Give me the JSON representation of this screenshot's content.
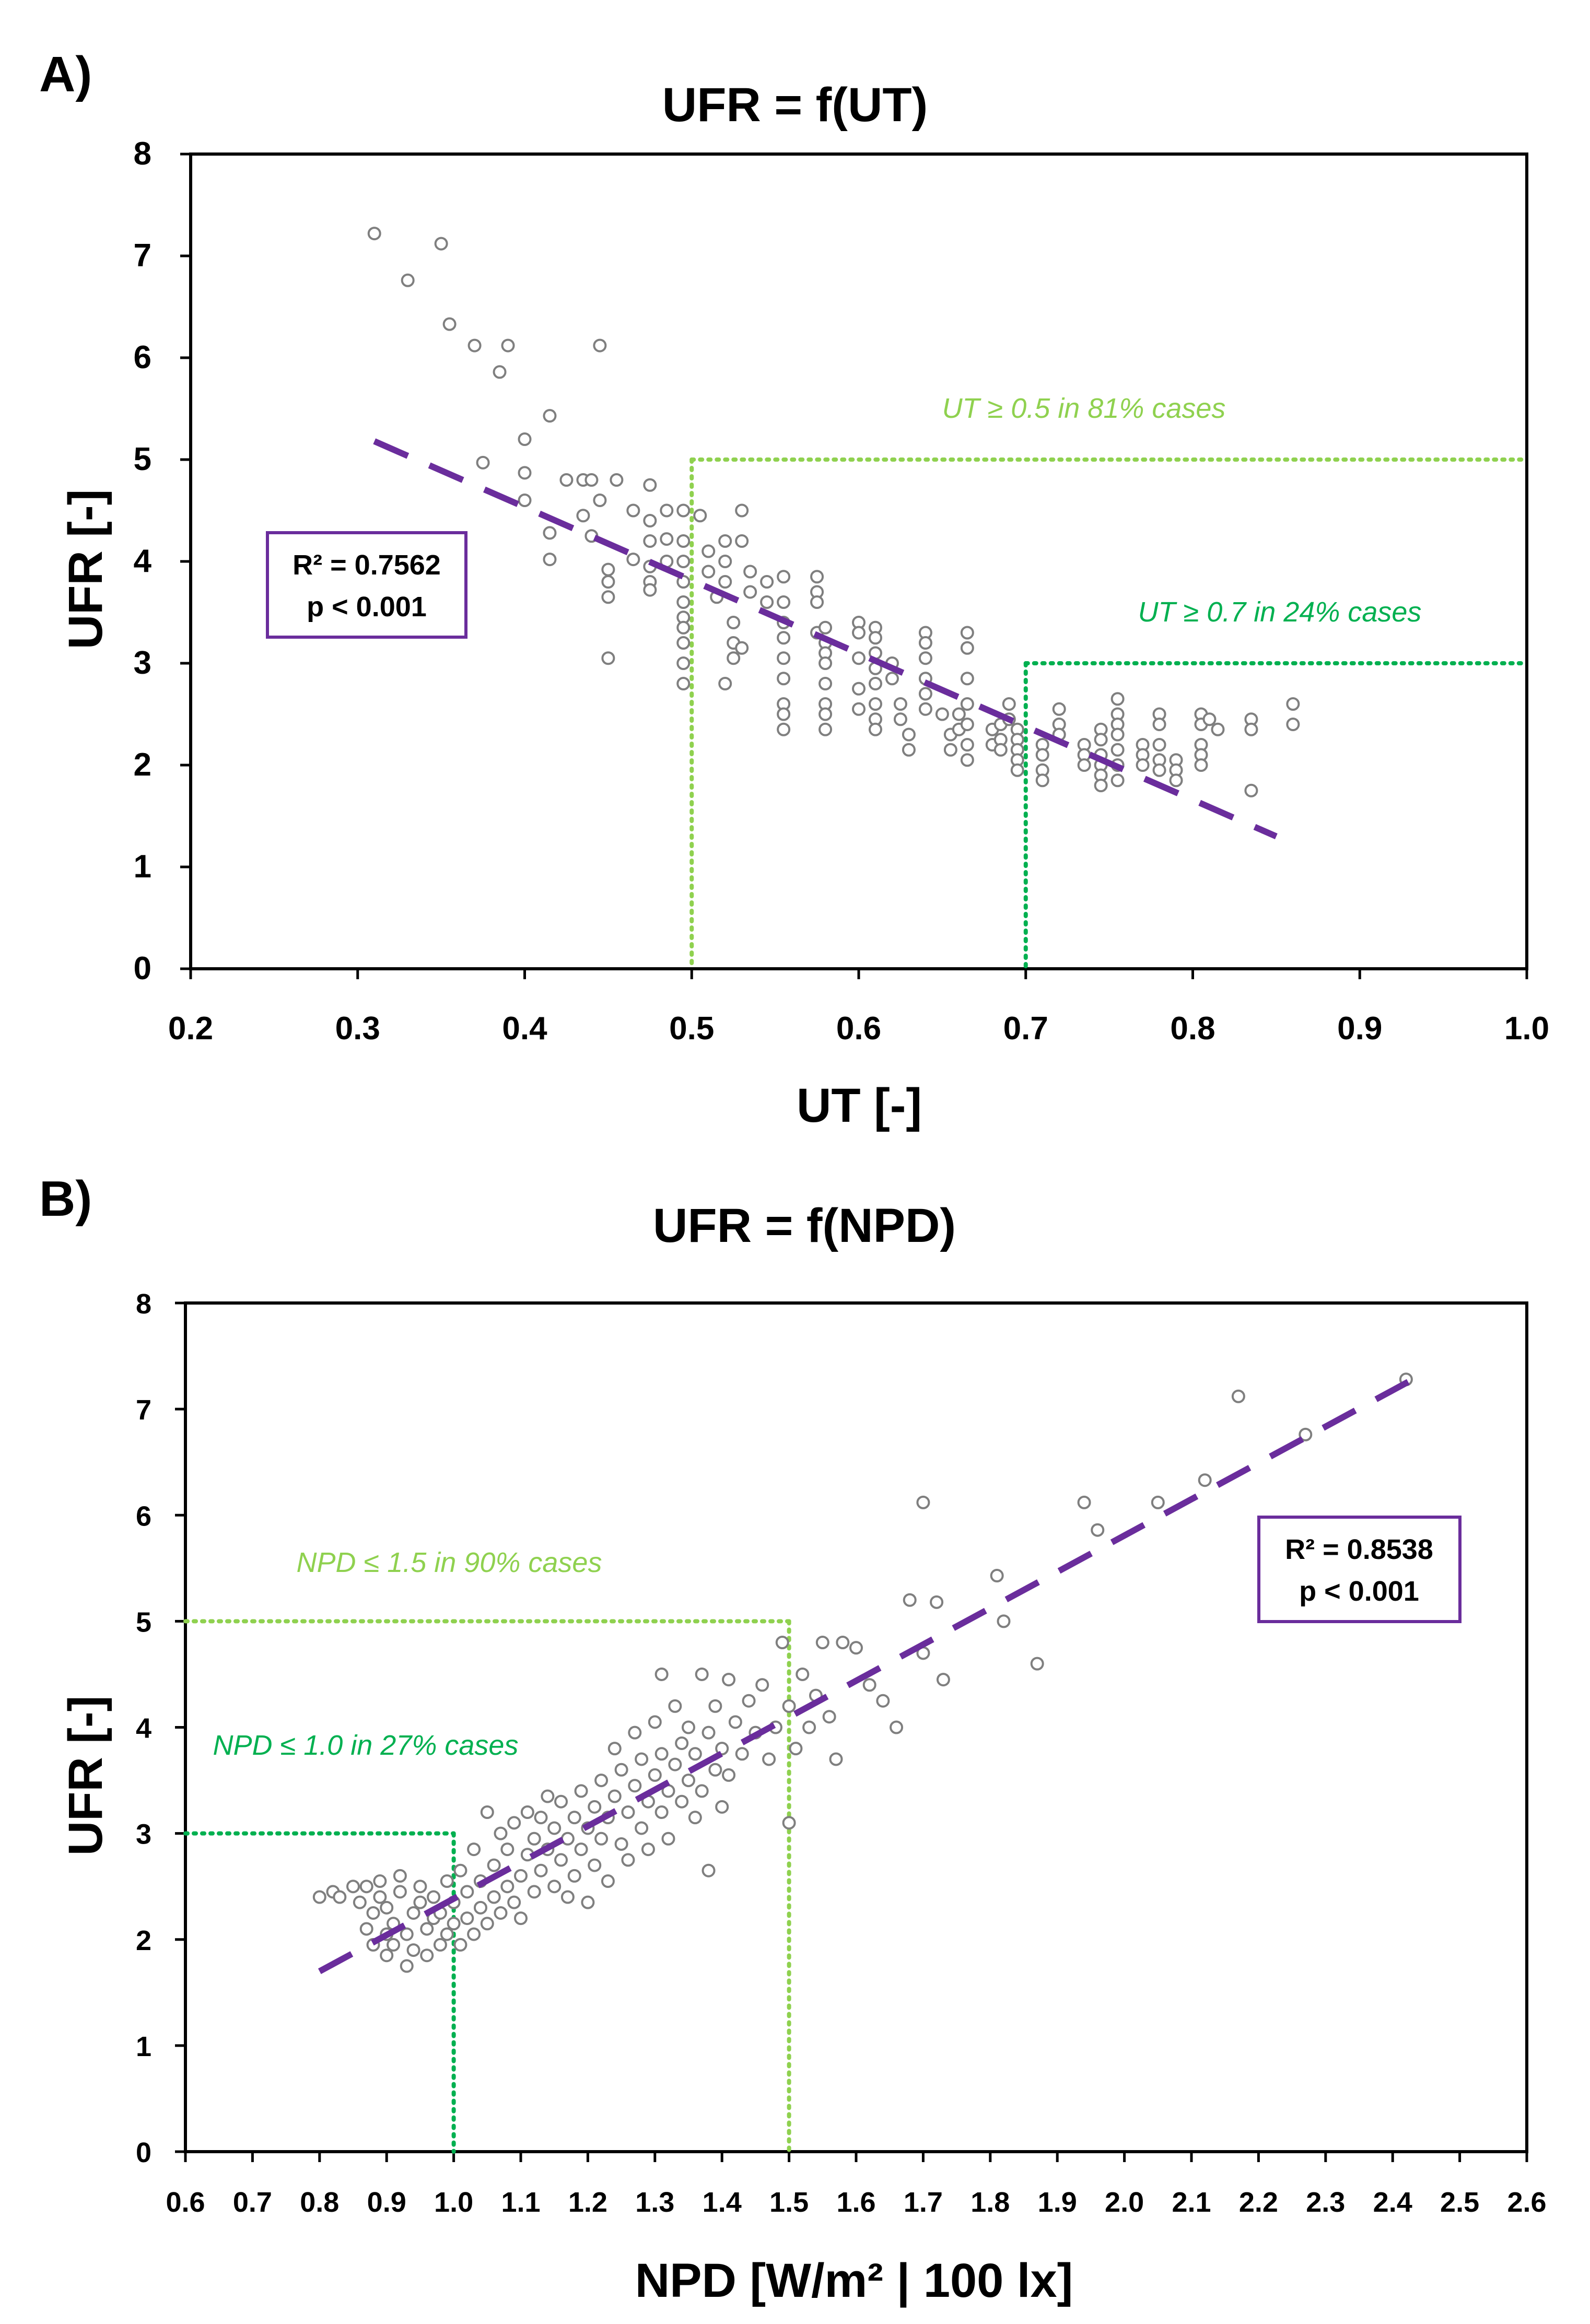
{
  "colors": {
    "accent": "#6a2d9c",
    "light_green": "#8fd14f",
    "dark_green": "#00b050",
    "marker": "#7f7f7f"
  },
  "chart_data": [
    {
      "panel_label": "A)",
      "type": "scatter",
      "title": "UFR = f(UT)",
      "xlabel": "UT [-]",
      "ylabel": "UFR [-]",
      "xlim": [
        0.2,
        1.0
      ],
      "ylim": [
        0,
        8
      ],
      "xticks": [
        "0.2",
        "0.3",
        "0.4",
        "0.5",
        "0.6",
        "0.7",
        "0.8",
        "0.9",
        "1.0"
      ],
      "yticks": [
        "0",
        "1",
        "2",
        "3",
        "4",
        "5",
        "6",
        "7",
        "8"
      ],
      "grid": false,
      "stats": {
        "r2": "R² = 0.7562",
        "p": "p < 0.001"
      },
      "trendline": {
        "x": [
          0.31,
          0.85
        ],
        "y": [
          5.18,
          1.3
        ]
      },
      "thresholds": [
        {
          "label": "UT ≥ 0.5 in 81% cases",
          "x": 0.5,
          "y": 5,
          "x_end": 1.0,
          "color": "light"
        },
        {
          "label": "UT ≥ 0.7 in 24% cases",
          "x": 0.7,
          "y": 3,
          "x_end": 1.0,
          "color": "dark"
        }
      ],
      "points": [
        [
          0.31,
          7.22
        ],
        [
          0.33,
          6.76
        ],
        [
          0.35,
          7.12
        ],
        [
          0.355,
          6.33
        ],
        [
          0.37,
          6.12
        ],
        [
          0.385,
          5.86
        ],
        [
          0.39,
          6.12
        ],
        [
          0.375,
          4.97
        ],
        [
          0.4,
          5.2
        ],
        [
          0.4,
          4.87
        ],
        [
          0.4,
          4.6
        ],
        [
          0.415,
          5.43
        ],
        [
          0.415,
          4.28
        ],
        [
          0.415,
          4.02
        ],
        [
          0.425,
          4.8
        ],
        [
          0.435,
          4.8
        ],
        [
          0.44,
          4.8
        ],
        [
          0.445,
          6.12
        ],
        [
          0.445,
          4.6
        ],
        [
          0.435,
          4.45
        ],
        [
          0.44,
          4.25
        ],
        [
          0.45,
          3.92
        ],
        [
          0.45,
          3.8
        ],
        [
          0.45,
          3.65
        ],
        [
          0.45,
          3.05
        ],
        [
          0.455,
          4.8
        ],
        [
          0.465,
          4.5
        ],
        [
          0.465,
          4.02
        ],
        [
          0.475,
          4.75
        ],
        [
          0.475,
          4.4
        ],
        [
          0.475,
          4.2
        ],
        [
          0.475,
          3.95
        ],
        [
          0.475,
          3.8
        ],
        [
          0.475,
          3.72
        ],
        [
          0.485,
          4.5
        ],
        [
          0.485,
          4.22
        ],
        [
          0.485,
          4.0
        ],
        [
          0.495,
          4.5
        ],
        [
          0.495,
          4.2
        ],
        [
          0.495,
          4.0
        ],
        [
          0.495,
          3.8
        ],
        [
          0.495,
          3.6
        ],
        [
          0.495,
          3.45
        ],
        [
          0.495,
          3.35
        ],
        [
          0.495,
          3.2
        ],
        [
          0.495,
          3.0
        ],
        [
          0.495,
          2.8
        ],
        [
          0.505,
          4.45
        ],
        [
          0.51,
          4.1
        ],
        [
          0.51,
          3.9
        ],
        [
          0.515,
          3.65
        ],
        [
          0.52,
          4.2
        ],
        [
          0.52,
          4.0
        ],
        [
          0.52,
          3.8
        ],
        [
          0.525,
          3.4
        ],
        [
          0.525,
          3.2
        ],
        [
          0.525,
          3.05
        ],
        [
          0.52,
          2.8
        ],
        [
          0.53,
          4.5
        ],
        [
          0.53,
          4.2
        ],
        [
          0.535,
          3.9
        ],
        [
          0.535,
          3.7
        ],
        [
          0.53,
          3.15
        ],
        [
          0.545,
          3.8
        ],
        [
          0.545,
          3.6
        ],
        [
          0.555,
          3.85
        ],
        [
          0.555,
          3.6
        ],
        [
          0.555,
          3.4
        ],
        [
          0.555,
          3.25
        ],
        [
          0.555,
          3.05
        ],
        [
          0.555,
          2.85
        ],
        [
          0.555,
          2.6
        ],
        [
          0.555,
          2.5
        ],
        [
          0.555,
          2.35
        ],
        [
          0.575,
          3.85
        ],
        [
          0.575,
          3.7
        ],
        [
          0.575,
          3.6
        ],
        [
          0.575,
          3.3
        ],
        [
          0.58,
          3.35
        ],
        [
          0.58,
          3.2
        ],
        [
          0.58,
          3.1
        ],
        [
          0.58,
          3.0
        ],
        [
          0.58,
          2.8
        ],
        [
          0.58,
          2.6
        ],
        [
          0.58,
          2.5
        ],
        [
          0.58,
          2.35
        ],
        [
          0.6,
          3.4
        ],
        [
          0.6,
          3.3
        ],
        [
          0.6,
          3.05
        ],
        [
          0.6,
          2.75
        ],
        [
          0.6,
          2.55
        ],
        [
          0.61,
          3.35
        ],
        [
          0.61,
          3.25
        ],
        [
          0.61,
          3.1
        ],
        [
          0.61,
          2.95
        ],
        [
          0.61,
          2.8
        ],
        [
          0.61,
          2.6
        ],
        [
          0.61,
          2.45
        ],
        [
          0.61,
          2.35
        ],
        [
          0.62,
          3.0
        ],
        [
          0.62,
          2.85
        ],
        [
          0.625,
          2.6
        ],
        [
          0.625,
          2.45
        ],
        [
          0.63,
          2.3
        ],
        [
          0.63,
          2.15
        ],
        [
          0.64,
          3.3
        ],
        [
          0.64,
          3.2
        ],
        [
          0.64,
          3.05
        ],
        [
          0.64,
          2.85
        ],
        [
          0.64,
          2.7
        ],
        [
          0.64,
          2.55
        ],
        [
          0.65,
          2.5
        ],
        [
          0.655,
          2.3
        ],
        [
          0.655,
          2.15
        ],
        [
          0.66,
          2.5
        ],
        [
          0.66,
          2.35
        ],
        [
          0.665,
          3.3
        ],
        [
          0.665,
          3.15
        ],
        [
          0.665,
          2.85
        ],
        [
          0.665,
          2.6
        ],
        [
          0.665,
          2.4
        ],
        [
          0.665,
          2.2
        ],
        [
          0.665,
          2.05
        ],
        [
          0.68,
          2.35
        ],
        [
          0.68,
          2.2
        ],
        [
          0.685,
          2.4
        ],
        [
          0.685,
          2.25
        ],
        [
          0.685,
          2.15
        ],
        [
          0.69,
          2.6
        ],
        [
          0.69,
          2.45
        ],
        [
          0.695,
          2.35
        ],
        [
          0.695,
          2.25
        ],
        [
          0.695,
          2.15
        ],
        [
          0.695,
          2.05
        ],
        [
          0.695,
          1.95
        ],
        [
          0.71,
          2.2
        ],
        [
          0.71,
          2.1
        ],
        [
          0.71,
          1.95
        ],
        [
          0.71,
          1.85
        ],
        [
          0.72,
          2.55
        ],
        [
          0.72,
          2.4
        ],
        [
          0.72,
          2.3
        ],
        [
          0.735,
          2.2
        ],
        [
          0.735,
          2.1
        ],
        [
          0.735,
          2.0
        ],
        [
          0.745,
          2.35
        ],
        [
          0.745,
          2.25
        ],
        [
          0.745,
          2.1
        ],
        [
          0.745,
          2.0
        ],
        [
          0.745,
          1.9
        ],
        [
          0.745,
          1.8
        ],
        [
          0.755,
          2.65
        ],
        [
          0.755,
          2.5
        ],
        [
          0.755,
          2.4
        ],
        [
          0.755,
          2.3
        ],
        [
          0.755,
          2.15
        ],
        [
          0.755,
          2.0
        ],
        [
          0.755,
          1.85
        ],
        [
          0.77,
          2.2
        ],
        [
          0.77,
          2.1
        ],
        [
          0.77,
          2.0
        ],
        [
          0.78,
          2.5
        ],
        [
          0.78,
          2.4
        ],
        [
          0.78,
          2.2
        ],
        [
          0.78,
          2.05
        ],
        [
          0.78,
          1.95
        ],
        [
          0.79,
          2.05
        ],
        [
          0.79,
          1.95
        ],
        [
          0.79,
          1.85
        ],
        [
          0.805,
          2.5
        ],
        [
          0.805,
          2.4
        ],
        [
          0.805,
          2.2
        ],
        [
          0.805,
          2.1
        ],
        [
          0.805,
          2.0
        ],
        [
          0.81,
          2.45
        ],
        [
          0.815,
          2.35
        ],
        [
          0.835,
          2.45
        ],
        [
          0.835,
          2.35
        ],
        [
          0.835,
          1.75
        ],
        [
          0.86,
          2.6
        ],
        [
          0.86,
          2.4
        ]
      ]
    },
    {
      "panel_label": "B)",
      "type": "scatter",
      "title": "UFR = f(NPD)",
      "xlabel": "NPD [W/m² | 100 lx]",
      "ylabel": "UFR [-]",
      "xlim": [
        0.6,
        2.6
      ],
      "ylim": [
        0,
        8
      ],
      "xticks": [
        "0.6",
        "0.7",
        "0.8",
        "0.9",
        "1.0",
        "1.1",
        "1.2",
        "1.3",
        "1.4",
        "1.5",
        "1.6",
        "1.7",
        "1.8",
        "1.9",
        "2.0",
        "2.1",
        "2.2",
        "2.3",
        "2.4",
        "2.5",
        "2.6"
      ],
      "yticks": [
        "0",
        "1",
        "2",
        "3",
        "4",
        "5",
        "6",
        "7",
        "8"
      ],
      "grid": false,
      "stats": {
        "r2": "R² = 0.8538",
        "p": "p < 0.001"
      },
      "trendline": {
        "x": [
          0.8,
          2.43
        ],
        "y": [
          1.7,
          7.28
        ]
      },
      "thresholds": [
        {
          "label": "NPD ≤ 1.5 in 90% cases",
          "x": 1.5,
          "y": 5,
          "x_start": 0.6,
          "color": "light"
        },
        {
          "label": "NPD ≤ 1.0 in 27% cases",
          "x": 1.0,
          "y": 3,
          "x_start": 0.6,
          "color": "dark"
        }
      ],
      "points": [
        [
          0.8,
          2.4
        ],
        [
          0.82,
          2.45
        ],
        [
          0.83,
          2.4
        ],
        [
          0.85,
          2.5
        ],
        [
          0.86,
          2.35
        ],
        [
          0.87,
          2.1
        ],
        [
          0.87,
          2.5
        ],
        [
          0.88,
          1.95
        ],
        [
          0.88,
          2.25
        ],
        [
          0.89,
          2.4
        ],
        [
          0.89,
          2.55
        ],
        [
          0.9,
          1.85
        ],
        [
          0.9,
          2.05
        ],
        [
          0.9,
          2.3
        ],
        [
          0.91,
          2.15
        ],
        [
          0.91,
          1.95
        ],
        [
          0.92,
          2.45
        ],
        [
          0.92,
          2.6
        ],
        [
          0.93,
          1.75
        ],
        [
          0.93,
          2.05
        ],
        [
          0.94,
          2.25
        ],
        [
          0.94,
          1.9
        ],
        [
          0.95,
          2.35
        ],
        [
          0.95,
          2.5
        ],
        [
          0.96,
          2.1
        ],
        [
          0.96,
          1.85
        ],
        [
          0.97,
          2.2
        ],
        [
          0.97,
          2.4
        ],
        [
          0.98,
          1.95
        ],
        [
          0.98,
          2.25
        ],
        [
          0.99,
          2.05
        ],
        [
          0.99,
          2.55
        ],
        [
          1.0,
          2.15
        ],
        [
          1.0,
          2.35
        ],
        [
          1.01,
          1.95
        ],
        [
          1.01,
          2.65
        ],
        [
          1.02,
          2.2
        ],
        [
          1.02,
          2.45
        ],
        [
          1.03,
          2.05
        ],
        [
          1.03,
          2.85
        ],
        [
          1.04,
          2.3
        ],
        [
          1.04,
          2.55
        ],
        [
          1.05,
          3.2
        ],
        [
          1.05,
          2.15
        ],
        [
          1.06,
          2.4
        ],
        [
          1.06,
          2.7
        ],
        [
          1.07,
          2.25
        ],
        [
          1.07,
          3.0
        ],
        [
          1.08,
          2.5
        ],
        [
          1.08,
          2.85
        ],
        [
          1.09,
          2.35
        ],
        [
          1.09,
          3.1
        ],
        [
          1.1,
          2.6
        ],
        [
          1.1,
          2.2
        ],
        [
          1.11,
          2.8
        ],
        [
          1.11,
          3.2
        ],
        [
          1.12,
          2.45
        ],
        [
          1.12,
          2.95
        ],
        [
          1.13,
          3.15
        ],
        [
          1.13,
          2.65
        ],
        [
          1.14,
          2.85
        ],
        [
          1.14,
          3.35
        ],
        [
          1.15,
          2.5
        ],
        [
          1.15,
          3.05
        ],
        [
          1.16,
          2.75
        ],
        [
          1.16,
          3.3
        ],
        [
          1.17,
          2.4
        ],
        [
          1.17,
          2.95
        ],
        [
          1.18,
          3.15
        ],
        [
          1.18,
          2.6
        ],
        [
          1.19,
          3.4
        ],
        [
          1.19,
          2.85
        ],
        [
          1.2,
          3.05
        ],
        [
          1.2,
          2.35
        ],
        [
          1.21,
          3.25
        ],
        [
          1.21,
          2.7
        ],
        [
          1.22,
          3.5
        ],
        [
          1.22,
          2.95
        ],
        [
          1.23,
          3.15
        ],
        [
          1.23,
          2.55
        ],
        [
          1.24,
          3.35
        ],
        [
          1.24,
          3.8
        ],
        [
          1.25,
          2.9
        ],
        [
          1.25,
          3.6
        ],
        [
          1.26,
          3.2
        ],
        [
          1.26,
          2.75
        ],
        [
          1.27,
          3.45
        ],
        [
          1.27,
          3.95
        ],
        [
          1.28,
          3.05
        ],
        [
          1.28,
          3.7
        ],
        [
          1.29,
          3.3
        ],
        [
          1.29,
          2.85
        ],
        [
          1.3,
          3.55
        ],
        [
          1.3,
          4.05
        ],
        [
          1.31,
          3.2
        ],
        [
          1.31,
          3.75
        ],
        [
          1.31,
          4.5
        ],
        [
          1.32,
          3.4
        ],
        [
          1.32,
          2.95
        ],
        [
          1.33,
          3.65
        ],
        [
          1.33,
          4.2
        ],
        [
          1.34,
          3.3
        ],
        [
          1.34,
          3.85
        ],
        [
          1.35,
          3.5
        ],
        [
          1.35,
          4.0
        ],
        [
          1.36,
          3.15
        ],
        [
          1.36,
          3.75
        ],
        [
          1.37,
          4.5
        ],
        [
          1.37,
          3.4
        ],
        [
          1.38,
          3.95
        ],
        [
          1.38,
          2.65
        ],
        [
          1.39,
          3.6
        ],
        [
          1.39,
          4.2
        ],
        [
          1.4,
          3.25
        ],
        [
          1.4,
          3.8
        ],
        [
          1.41,
          4.45
        ],
        [
          1.41,
          3.55
        ],
        [
          1.42,
          4.05
        ],
        [
          1.43,
          3.75
        ],
        [
          1.44,
          4.25
        ],
        [
          1.45,
          3.95
        ],
        [
          1.46,
          4.4
        ],
        [
          1.47,
          3.7
        ],
        [
          1.48,
          4.0
        ],
        [
          1.49,
          4.8
        ],
        [
          1.5,
          4.2
        ],
        [
          1.5,
          3.1
        ],
        [
          1.51,
          3.8
        ],
        [
          1.52,
          4.5
        ],
        [
          1.53,
          4.0
        ],
        [
          1.54,
          4.3
        ],
        [
          1.55,
          4.8
        ],
        [
          1.56,
          4.1
        ],
        [
          1.57,
          3.7
        ],
        [
          1.58,
          4.8
        ],
        [
          1.6,
          4.75
        ],
        [
          1.62,
          4.4
        ],
        [
          1.64,
          4.25
        ],
        [
          1.66,
          4.0
        ],
        [
          1.68,
          5.2
        ],
        [
          1.7,
          4.7
        ],
        [
          1.7,
          6.12
        ],
        [
          1.72,
          5.18
        ],
        [
          1.73,
          4.45
        ],
        [
          1.81,
          5.43
        ],
        [
          1.82,
          5.0
        ],
        [
          1.87,
          4.6
        ],
        [
          1.94,
          6.12
        ],
        [
          1.96,
          5.86
        ],
        [
          2.05,
          6.12
        ],
        [
          2.12,
          6.33
        ],
        [
          2.17,
          7.12
        ],
        [
          2.27,
          6.76
        ],
        [
          2.42,
          7.28
        ]
      ]
    }
  ]
}
